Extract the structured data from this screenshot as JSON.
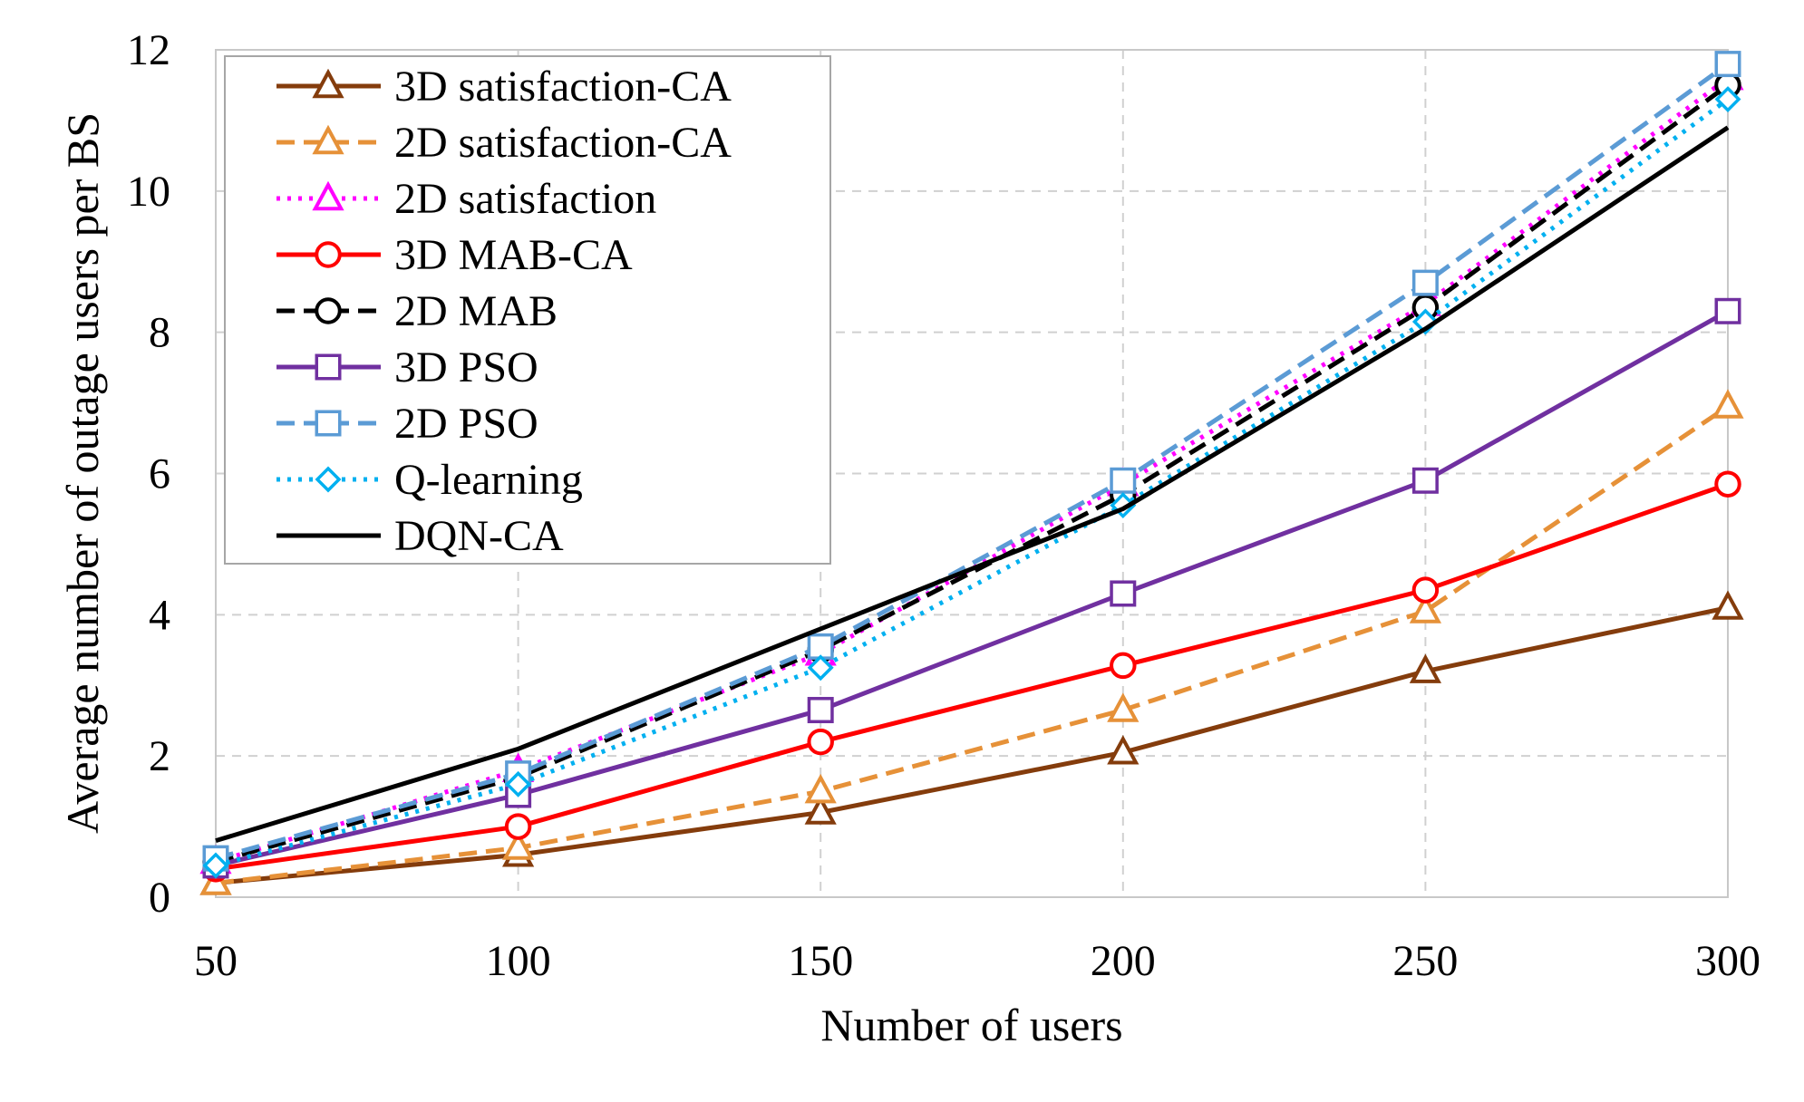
{
  "chart_data": {
    "type": "line",
    "title": "",
    "xlabel": "Number of users",
    "ylabel": "Average number of outage users per BS",
    "x": [
      50,
      100,
      150,
      200,
      250,
      300
    ],
    "x_tick_labels": [
      "50",
      "100",
      "150",
      "200",
      "250",
      "300"
    ],
    "y_tick_labels": [
      "0",
      "2",
      "4",
      "6",
      "8",
      "10",
      "12"
    ],
    "y_ticks": [
      0,
      2,
      4,
      6,
      8,
      10,
      12
    ],
    "xlim": [
      50,
      300
    ],
    "ylim": [
      0,
      12
    ],
    "grid": true,
    "legend_position": "top-left",
    "series": [
      {
        "name": "3D satisfaction-CA",
        "values": [
          0.2,
          0.6,
          1.2,
          2.05,
          3.2,
          4.1
        ],
        "color": "#843c0c",
        "dash": "solid",
        "marker": "triangle"
      },
      {
        "name": "2D satisfaction-CA",
        "values": [
          0.2,
          0.7,
          1.5,
          2.65,
          4.05,
          6.95
        ],
        "color": "#e69138",
        "dash": "dashed",
        "marker": "triangle"
      },
      {
        "name": "2D satisfaction",
        "values": [
          0.5,
          1.8,
          3.45,
          5.85,
          8.4,
          11.6
        ],
        "color": "#ff00ff",
        "dash": "dotted",
        "marker": "triangle"
      },
      {
        "name": "3D MAB-CA",
        "values": [
          0.4,
          1.0,
          2.2,
          3.28,
          4.35,
          5.85
        ],
        "color": "#ff0000",
        "dash": "solid",
        "marker": "circle"
      },
      {
        "name": "2D MAB",
        "values": [
          0.5,
          1.7,
          3.5,
          5.7,
          8.35,
          11.5
        ],
        "color": "#000000",
        "dash": "dashed",
        "marker": "circle"
      },
      {
        "name": "3D PSO",
        "values": [
          0.45,
          1.45,
          2.65,
          4.3,
          5.9,
          8.3
        ],
        "color": "#7030a0",
        "dash": "solid",
        "marker": "square"
      },
      {
        "name": "2D PSO",
        "values": [
          0.55,
          1.75,
          3.55,
          5.9,
          8.7,
          11.8
        ],
        "color": "#5b9bd5",
        "dash": "dashed",
        "marker": "square"
      },
      {
        "name": "Q-learning",
        "values": [
          0.45,
          1.6,
          3.25,
          5.55,
          8.15,
          11.3
        ],
        "color": "#00b0f0",
        "dash": "dotted",
        "marker": "diamond"
      },
      {
        "name": "DQN-CA",
        "values": [
          0.8,
          2.1,
          3.8,
          5.5,
          8.05,
          10.9
        ],
        "color": "#000000",
        "dash": "solid",
        "marker": "none"
      }
    ]
  }
}
